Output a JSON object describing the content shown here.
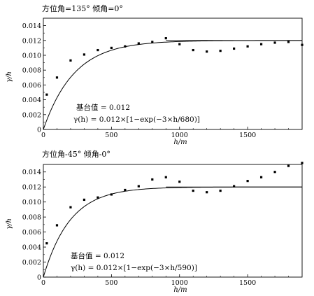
{
  "chart_data": [
    {
      "type": "scatter",
      "title": "方位角=135° 倾角=0°",
      "xlabel": "h/m",
      "ylabel": "γ/h",
      "xlim": [
        0,
        1900
      ],
      "ylim": [
        0,
        0.015
      ],
      "xticks": [
        "0",
        "500",
        "1000",
        "1500"
      ],
      "yticks": [
        "0",
        "0.002",
        "0.004",
        "0.006",
        "0.008",
        "0.010",
        "0.012",
        "0.014"
      ],
      "grid": false,
      "sill_text": "基台值 = 0.012",
      "model_text": "γ(h) = 0.012×[1−exp(−3×h/680)]",
      "model": {
        "sill": 0.012,
        "range": 680
      },
      "series": [
        {
          "x": [
            25,
            100,
            200,
            300,
            400,
            500,
            600,
            700,
            800,
            900,
            1000,
            1100,
            1200,
            1300,
            1400,
            1500,
            1600,
            1700,
            1800,
            1900
          ],
          "y": [
            0.0047,
            0.007,
            0.0093,
            0.0101,
            0.0107,
            0.011,
            0.0112,
            0.0116,
            0.0118,
            0.0123,
            0.0115,
            0.0107,
            0.0105,
            0.0106,
            0.0109,
            0.0112,
            0.0115,
            0.0117,
            0.0118,
            0.0114
          ]
        }
      ]
    },
    {
      "type": "scatter",
      "title": "方位角-45° 倾角-0°",
      "xlabel": "h/m",
      "ylabel": "γ/h",
      "xlim": [
        0,
        1900
      ],
      "ylim": [
        0,
        0.015
      ],
      "xticks": [
        "0",
        "500",
        "1000",
        "1500"
      ],
      "yticks": [
        "0",
        "0.002",
        "0.004",
        "0.006",
        "0.008",
        "0.010",
        "0.012",
        "0.014"
      ],
      "grid": false,
      "sill_text": "基台值 = 0.012",
      "model_text": "γ(h) = 0.012×[1−exp(−3×h/590)]",
      "model": {
        "sill": 0.012,
        "range": 590
      },
      "series": [
        {
          "x": [
            25,
            100,
            200,
            300,
            400,
            500,
            600,
            700,
            800,
            900,
            1000,
            1100,
            1200,
            1300,
            1400,
            1500,
            1600,
            1700,
            1800,
            1900
          ],
          "y": [
            0.0045,
            0.0069,
            0.0093,
            0.0103,
            0.0106,
            0.011,
            0.0116,
            0.0121,
            0.013,
            0.0133,
            0.0127,
            0.0115,
            0.0113,
            0.0115,
            0.0121,
            0.0128,
            0.0133,
            0.014,
            0.0148,
            0.0152
          ]
        }
      ]
    }
  ]
}
